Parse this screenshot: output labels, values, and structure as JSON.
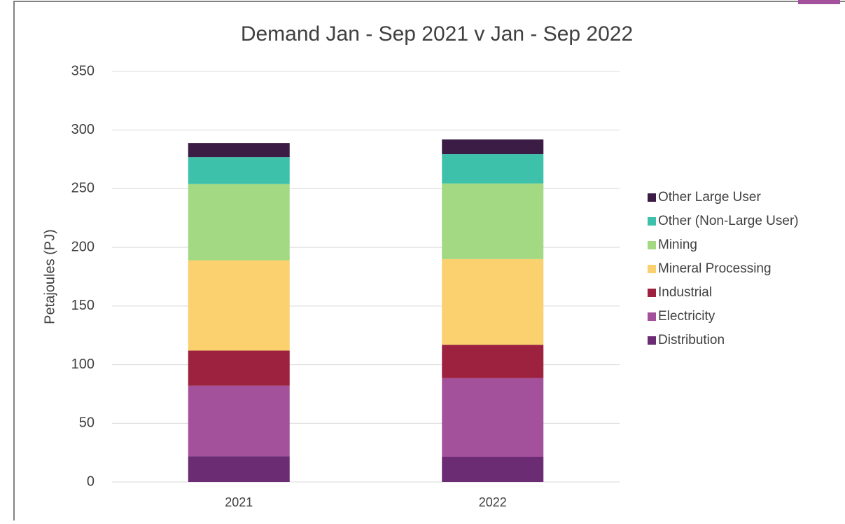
{
  "chart_data": {
    "type": "stacked_bar",
    "title": "Demand Jan - Sep 2021 v Jan - Sep 2022",
    "y_label": "Petajoules (PJ)",
    "categories": [
      "2021",
      "2022"
    ],
    "series": [
      {
        "name": "Distribution",
        "color": "#6b2c74",
        "values": [
          22,
          21.5
        ]
      },
      {
        "name": "Electricity",
        "color": "#a4519c",
        "values": [
          60,
          67
        ]
      },
      {
        "name": "Industrial",
        "color": "#9c2240",
        "values": [
          30,
          28.5
        ]
      },
      {
        "name": "Mineral Processing",
        "color": "#fbd06f",
        "values": [
          77,
          73
        ]
      },
      {
        "name": "Mining",
        "color": "#a2d982",
        "values": [
          65,
          64.5
        ]
      },
      {
        "name": "Other (Non-Large User)",
        "color": "#3ec1ab",
        "values": [
          23,
          25
        ]
      },
      {
        "name": "Other Large User",
        "color": "#3a1c45",
        "values": [
          12,
          12.5
        ]
      }
    ],
    "ylim": [
      0,
      350
    ],
    "yticks": [
      0,
      50,
      100,
      150,
      200,
      250,
      300,
      350
    ],
    "grid": true,
    "legend": "right"
  }
}
